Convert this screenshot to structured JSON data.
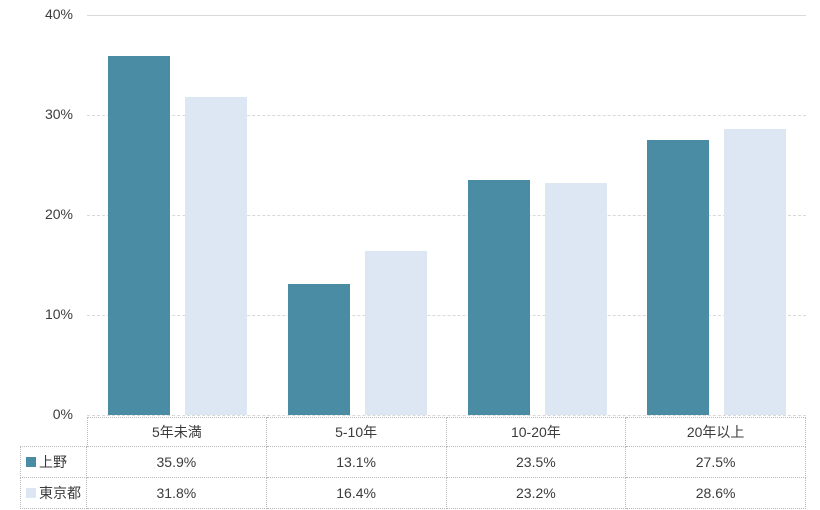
{
  "chart_data": {
    "type": "bar",
    "categories": [
      "5年未満",
      "5-10年",
      "10-20年",
      "20年以上"
    ],
    "series": [
      {
        "name": "上野",
        "color": "#4A8CA4",
        "values": [
          35.9,
          13.1,
          23.5,
          27.5
        ]
      },
      {
        "name": "東京都",
        "color": "#DDE7F3",
        "values": [
          31.8,
          16.4,
          23.2,
          28.6
        ]
      }
    ],
    "title": "",
    "xlabel": "",
    "ylabel": "",
    "ylim": [
      0,
      40
    ],
    "ytick_step": 10,
    "ytick_labels": [
      "0%",
      "10%",
      "20%",
      "30%",
      "40%"
    ],
    "grid": true,
    "gridline_color": "#d9d9d9",
    "legend_position": "data-table-left",
    "value_suffix": "%",
    "value_decimals": 1
  },
  "colors": {
    "text": "#3b3b3b",
    "table_border": "#b9b9b9",
    "background": "#ffffff"
  }
}
